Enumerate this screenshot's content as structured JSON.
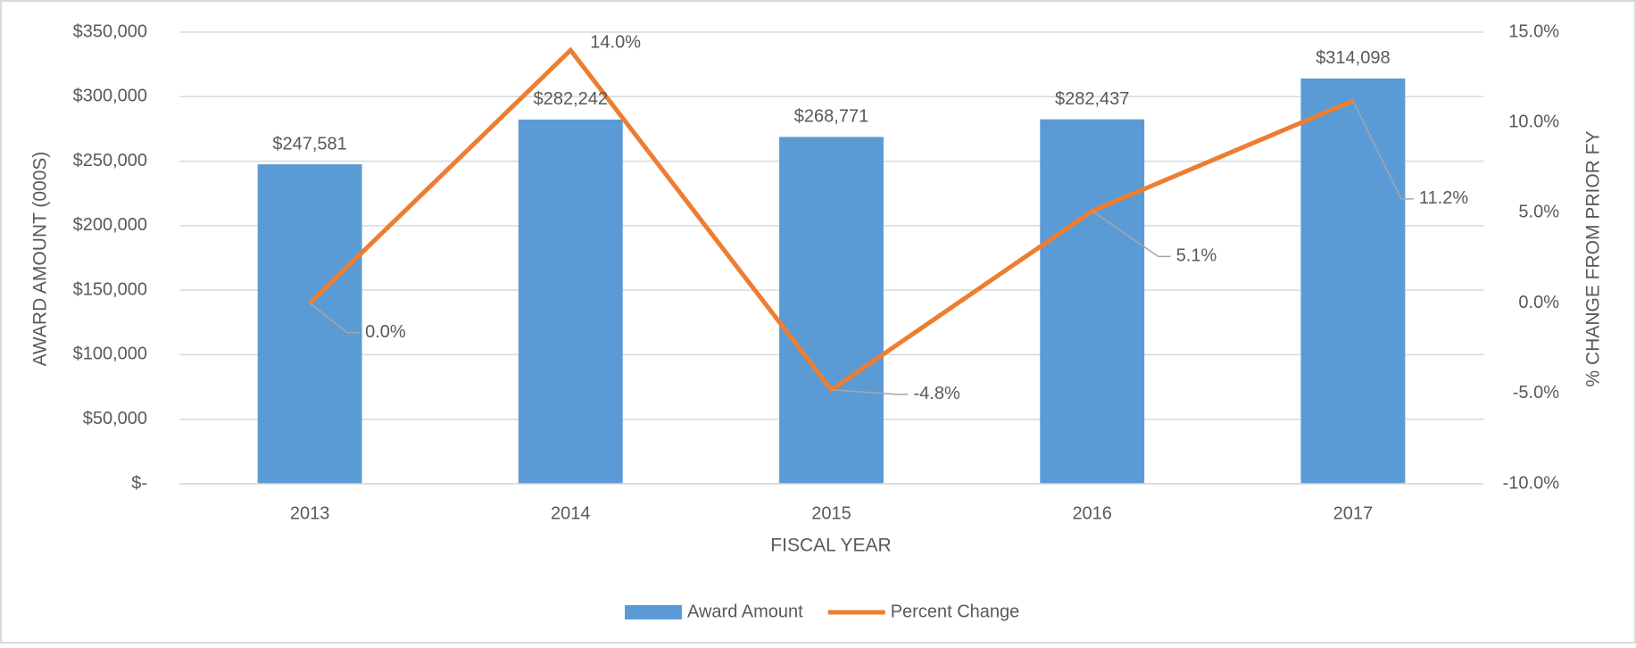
{
  "chart_data": {
    "type": "combo",
    "categories": [
      "2013",
      "2014",
      "2015",
      "2016",
      "2017"
    ],
    "series": [
      {
        "name": "Award Amount",
        "type": "bar",
        "color": "#5b9bd5",
        "values": [
          247581,
          282242,
          268771,
          282437,
          314098
        ],
        "value_labels": [
          "$247,581",
          "$282,242",
          "$268,771",
          "$282,437",
          "$314,098"
        ]
      },
      {
        "name": "Percent Change",
        "type": "line",
        "axis": "y2",
        "color": "#ed7d31",
        "values": [
          0.0,
          14.0,
          -4.8,
          5.1,
          11.2
        ],
        "value_labels": [
          "0.0%",
          "14.0%",
          "-4.8%",
          "5.1%",
          "11.2%"
        ]
      }
    ],
    "ylim": [
      0,
      350000
    ],
    "yticks": [
      {
        "value": 0,
        "label": "$-"
      },
      {
        "value": 50000,
        "label": "$50,000"
      },
      {
        "value": 100000,
        "label": "$100,000"
      },
      {
        "value": 150000,
        "label": "$150,000"
      },
      {
        "value": 200000,
        "label": "$200,000"
      },
      {
        "value": 250000,
        "label": "$250,000"
      },
      {
        "value": 300000,
        "label": "$300,000"
      },
      {
        "value": 350000,
        "label": "$350,000"
      }
    ],
    "y2lim": [
      -10,
      15
    ],
    "y2ticks": [
      {
        "value": -10,
        "label": "-10.0%"
      },
      {
        "value": -5,
        "label": "-5.0%"
      },
      {
        "value": 0,
        "label": "0.0%"
      },
      {
        "value": 5,
        "label": "5.0%"
      },
      {
        "value": 10,
        "label": "10.0%"
      },
      {
        "value": 15,
        "label": "15.0%"
      }
    ],
    "xlabel": "FISCAL YEAR",
    "ylabel": "AWARD AMOUNT (000S)",
    "y2label": "% CHANGE FROM PRIOR FY",
    "grid": true,
    "legend": "bottom"
  }
}
